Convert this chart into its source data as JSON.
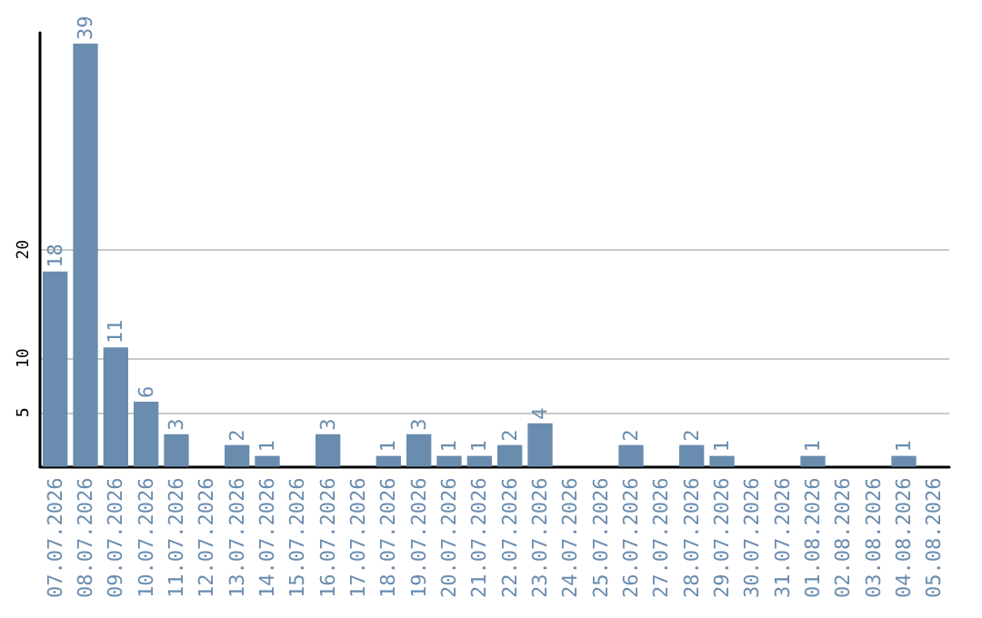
{
  "chart_data": {
    "type": "bar",
    "categories": [
      "07.07.2026",
      "08.07.2026",
      "09.07.2026",
      "10.07.2026",
      "11.07.2026",
      "12.07.2026",
      "13.07.2026",
      "14.07.2026",
      "15.07.2026",
      "16.07.2026",
      "17.07.2026",
      "18.07.2026",
      "19.07.2026",
      "20.07.2026",
      "21.07.2026",
      "22.07.2026",
      "23.07.2026",
      "24.07.2026",
      "25.07.2026",
      "26.07.2026",
      "27.07.2026",
      "28.07.2026",
      "29.07.2026",
      "30.07.2026",
      "31.07.2026",
      "01.08.2026",
      "02.08.2026",
      "03.08.2026",
      "04.08.2026",
      "05.08.2026"
    ],
    "values": [
      18,
      39,
      11,
      6,
      3,
      0,
      2,
      1,
      0,
      3,
      0,
      1,
      3,
      1,
      1,
      2,
      4,
      0,
      0,
      2,
      0,
      2,
      1,
      0,
      0,
      1,
      0,
      0,
      1,
      0
    ],
    "value_labels": [
      "18",
      "39",
      "11",
      "6",
      "3",
      null,
      "2",
      "1",
      null,
      "3",
      null,
      "1",
      "3",
      "1",
      "1",
      "2",
      "4",
      null,
      null,
      "2",
      null,
      "2",
      "1",
      null,
      null,
      "1",
      null,
      null,
      "1",
      null
    ],
    "color": "#6a8caf",
    "ylim": [
      0,
      40
    ],
    "yticks": [
      5,
      10,
      20
    ],
    "grid": "y"
  }
}
